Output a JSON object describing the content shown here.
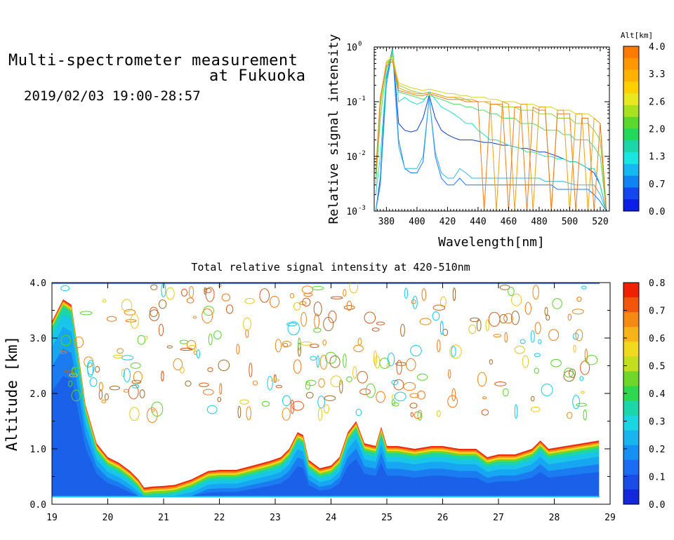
{
  "header": {
    "title_line1": "Multi-spectrometer measurement",
    "title_line2": "at Fukuoka",
    "date_range": "2019/02/03 19:00-28:57"
  },
  "chart_data": [
    {
      "type": "line",
      "title": "",
      "xlabel": "Wavelength[nm]",
      "ylabel": "Relative signal intensity",
      "yscale": "log",
      "xlim": [
        372,
        526
      ],
      "ylim": [
        0.001,
        1
      ],
      "xticks": [
        380,
        400,
        420,
        440,
        460,
        480,
        500,
        520
      ],
      "yticks": [
        {
          "value": 0.001,
          "label": "10",
          "exp": "-3"
        },
        {
          "value": 0.01,
          "label": "10",
          "exp": "-2"
        },
        {
          "value": 0.1,
          "label": "10",
          "exp": "-1"
        },
        {
          "value": 1,
          "label": "10",
          "exp": "0"
        }
      ],
      "grid": false,
      "x": [
        373,
        376,
        380,
        384,
        388,
        392,
        396,
        400,
        404,
        408,
        412,
        416,
        420,
        424,
        428,
        432,
        436,
        440,
        444,
        448,
        452,
        456,
        460,
        464,
        468,
        472,
        476,
        480,
        484,
        488,
        492,
        496,
        500,
        504,
        508,
        512,
        516,
        520,
        524
      ],
      "series": [
        {
          "color": "#0a3cd6",
          "values": [
            0.001,
            0.004,
            0.3,
            0.95,
            0.04,
            0.03,
            0.028,
            0.03,
            0.05,
            0.13,
            0.05,
            0.03,
            0.025,
            0.022,
            0.02,
            0.02,
            0.02,
            0.019,
            0.018,
            0.018,
            0.017,
            0.016,
            0.016,
            0.015,
            0.014,
            0.014,
            0.013,
            0.012,
            0.012,
            0.011,
            0.01,
            0.009,
            0.008,
            0.008,
            0.007,
            0.006,
            0.005,
            0.003,
            0.001
          ]
        },
        {
          "color": "#1f78f2",
          "values": [
            0.001,
            0.003,
            0.25,
            0.9,
            0.02,
            0.006,
            0.005,
            0.005,
            0.008,
            0.12,
            0.01,
            0.004,
            0.003,
            0.003,
            0.004,
            0.003,
            0.003,
            0.003,
            0.003,
            0.003,
            0.003,
            0.003,
            0.003,
            0.003,
            0.003,
            0.003,
            0.003,
            0.003,
            0.003,
            0.003,
            0.0025,
            0.0025,
            0.0025,
            0.0025,
            0.0025,
            0.0025,
            0.002,
            0.0015,
            0.001
          ]
        },
        {
          "color": "#37b6e6",
          "values": [
            0.001,
            0.003,
            0.2,
            0.85,
            0.015,
            0.006,
            0.006,
            0.006,
            0.01,
            0.12,
            0.012,
            0.005,
            0.004,
            0.004,
            0.006,
            0.005,
            0.004,
            0.004,
            0.004,
            0.004,
            0.004,
            0.004,
            0.004,
            0.004,
            0.004,
            0.004,
            0.004,
            0.004,
            0.0035,
            0.0035,
            0.0035,
            0.0035,
            0.0032,
            0.003,
            0.003,
            0.003,
            0.003,
            0.002,
            0.001
          ]
        },
        {
          "color": "#22ddc8",
          "values": [
            0.002,
            0.01,
            0.3,
            0.9,
            0.1,
            0.12,
            0.1,
            0.09,
            0.1,
            0.15,
            0.11,
            0.08,
            0.07,
            0.06,
            0.05,
            0.04,
            0.04,
            0.03,
            0.025,
            0.02,
            0.02,
            0.018,
            0.016,
            0.015,
            0.014,
            0.012,
            0.012,
            0.011,
            0.01,
            0.01,
            0.009,
            0.009,
            0.008,
            0.008,
            0.007,
            0.006,
            0.006,
            0.003,
            0.001
          ]
        },
        {
          "color": "#55d96a",
          "values": [
            0.003,
            0.05,
            0.4,
            0.8,
            0.15,
            0.14,
            0.13,
            0.12,
            0.11,
            0.13,
            0.12,
            0.11,
            0.1,
            0.09,
            0.09,
            0.08,
            0.08,
            0.07,
            0.07,
            0.06,
            0.06,
            0.05,
            0.05,
            0.05,
            0.04,
            0.04,
            0.04,
            0.035,
            0.03,
            0.03,
            0.03,
            0.025,
            0.025,
            0.02,
            0.02,
            0.02,
            0.015,
            0.01,
            0.001
          ]
        },
        {
          "color": "#9ad12e",
          "values": [
            0.004,
            0.08,
            0.5,
            0.7,
            0.2,
            0.18,
            0.16,
            0.15,
            0.14,
            0.15,
            0.14,
            0.13,
            0.12,
            0.12,
            0.11,
            0.11,
            0.1,
            0.1,
            0.1,
            0.09,
            0.09,
            0.08,
            0.08,
            0.08,
            0.07,
            0.07,
            0.07,
            0.06,
            0.06,
            0.06,
            0.05,
            0.05,
            0.05,
            0.04,
            0.04,
            0.04,
            0.03,
            0.02,
            0.001
          ]
        },
        {
          "color": "#d6d11e",
          "values": [
            0.005,
            0.1,
            0.55,
            0.65,
            0.22,
            0.2,
            0.18,
            0.17,
            0.16,
            0.17,
            0.16,
            0.15,
            0.14,
            0.14,
            0.13,
            0.13,
            0.12,
            0.12,
            0.12,
            0.11,
            0.11,
            0.1,
            0.1,
            0.1,
            0.09,
            0.09,
            0.09,
            0.08,
            0.08,
            0.08,
            0.07,
            0.07,
            0.07,
            0.06,
            0.06,
            0.06,
            0.05,
            0.04,
            0.001
          ]
        },
        {
          "color": "#e8a01a",
          "values": [
            0.005,
            0.12,
            0.5,
            0.6,
            0.18,
            0.16,
            0.15,
            0.14,
            0.14,
            0.15,
            0.14,
            0.13,
            0.12,
            0.12,
            0.12,
            0.11,
            0.11,
            0.1,
            0.1,
            0.1,
            0.001,
            0.1,
            0.09,
            0.001,
            0.09,
            0.09,
            0.001,
            0.08,
            0.08,
            0.001,
            0.07,
            0.07,
            0.001,
            0.06,
            0.06,
            0.001,
            0.05,
            0.04,
            0.001
          ]
        },
        {
          "color": "#ef7a1a",
          "values": [
            0.005,
            0.12,
            0.45,
            0.55,
            0.16,
            0.15,
            0.14,
            0.13,
            0.13,
            0.14,
            0.13,
            0.12,
            0.11,
            0.11,
            0.11,
            0.1,
            0.1,
            0.1,
            0.001,
            0.09,
            0.09,
            0.09,
            0.001,
            0.08,
            0.08,
            0.001,
            0.08,
            0.07,
            0.07,
            0.001,
            0.06,
            0.06,
            0.06,
            0.001,
            0.05,
            0.05,
            0.001,
            0.04,
            0.001
          ]
        }
      ],
      "colorbar": {
        "label": "Alt[km]",
        "ticks": [
          "4.0",
          "3.3",
          "2.6",
          "2.0",
          "1.3",
          "0.7",
          "0.0"
        ],
        "colors": [
          "#ff7a00",
          "#ff9800",
          "#ffb300",
          "#ffd000",
          "#e8e820",
          "#a8e21e",
          "#5ad82b",
          "#22d85a",
          "#1ad6a8",
          "#19e6e0",
          "#15b8f0",
          "#0f84f2",
          "#1448ee",
          "#0a1ee8"
        ]
      }
    },
    {
      "type": "heatmap",
      "title": "Total relative signal intensity at 420-510nm",
      "xlabel": "",
      "ylabel": "Altitude [km]",
      "xlim": [
        19,
        29
      ],
      "ylim": [
        0,
        4
      ],
      "xticks": [
        "19",
        "20",
        "21",
        "22",
        "23",
        "24",
        "25",
        "26",
        "27",
        "28",
        "29"
      ],
      "yticks": [
        "0.0",
        "1.0",
        "2.0",
        "3.0",
        "4.0"
      ],
      "layer_boundary": {
        "x": [
          19.0,
          19.2,
          19.35,
          19.45,
          19.6,
          19.8,
          20.0,
          20.2,
          20.4,
          20.55,
          20.65,
          20.8,
          21.0,
          21.2,
          21.5,
          21.8,
          22.0,
          22.3,
          22.6,
          22.9,
          23.1,
          23.25,
          23.4,
          23.5,
          23.6,
          23.8,
          24.0,
          24.15,
          24.3,
          24.45,
          24.6,
          24.8,
          24.9,
          25.0,
          25.2,
          25.5,
          25.8,
          26.0,
          26.3,
          26.6,
          26.8,
          27.0,
          27.3,
          27.6,
          27.75,
          27.9,
          28.2,
          28.5,
          28.8
        ],
        "top": [
          3.3,
          3.7,
          3.6,
          2.9,
          1.8,
          1.1,
          0.85,
          0.75,
          0.6,
          0.45,
          0.3,
          0.32,
          0.33,
          0.35,
          0.45,
          0.6,
          0.62,
          0.62,
          0.7,
          0.78,
          0.85,
          1.0,
          1.3,
          1.25,
          0.8,
          0.65,
          0.7,
          0.85,
          1.3,
          1.5,
          1.1,
          1.05,
          1.4,
          1.05,
          1.05,
          1.0,
          1.05,
          1.05,
          1.0,
          1.0,
          0.85,
          0.9,
          0.9,
          1.0,
          1.15,
          1.0,
          1.05,
          1.1,
          1.15
        ]
      },
      "colorbar": {
        "ticks": [
          "0.8",
          "0.7",
          "0.6",
          "0.5",
          "0.4",
          "0.3",
          "0.2",
          "0.1",
          "0.0"
        ],
        "colors": [
          "#ee2200",
          "#f2560a",
          "#f58a12",
          "#f6b418",
          "#f0d91e",
          "#c2de1e",
          "#6fd62a",
          "#2ed84e",
          "#1ad6a8",
          "#19d6e2",
          "#17b4f0",
          "#1590f4",
          "#1a6cf2",
          "#1a4ce6",
          "#1228da"
        ]
      }
    }
  ]
}
